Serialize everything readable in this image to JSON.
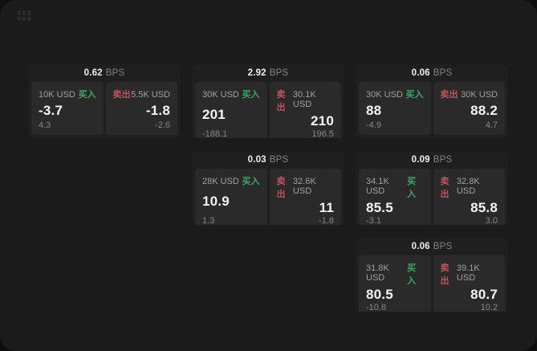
{
  "labels": {
    "bps_unit": "BPS",
    "buy": "买入",
    "sell": "卖出"
  },
  "colors": {
    "backdrop": "#0f0f0f",
    "surface": "#1b1b1b",
    "card": "#1f1f1f",
    "pane": "#2a2a2a",
    "text_primary": "#f5f5f5",
    "text_secondary": "#a2a2a2",
    "text_dim": "#868686",
    "buy_green": "#3ea768",
    "sell_red": "#c05260"
  },
  "icons": {
    "menu": "grid-dots-icon"
  },
  "cards": [
    {
      "bps": "0.62",
      "buy": {
        "amount": "10K USD",
        "value": "-3.7",
        "delta": "4.3"
      },
      "sell": {
        "amount": "5.5K USD",
        "value": "-1.8",
        "delta": "-2.6"
      }
    },
    {
      "bps": "2.92",
      "buy": {
        "amount": "30K USD",
        "value": "201",
        "delta": "-188.1"
      },
      "sell": {
        "amount": "30.1K USD",
        "value": "210",
        "delta": "196.5"
      }
    },
    {
      "bps": "0.06",
      "buy": {
        "amount": "30K USD",
        "value": "88",
        "delta": "-4.9"
      },
      "sell": {
        "amount": "30K USD",
        "value": "88.2",
        "delta": "4.7"
      }
    },
    {
      "bps": "0.03",
      "buy": {
        "amount": "28K USD",
        "value": "10.9",
        "delta": "1.3"
      },
      "sell": {
        "amount": "32.6K USD",
        "value": "11",
        "delta": "-1.8"
      }
    },
    {
      "bps": "0.09",
      "buy": {
        "amount": "34.1K USD",
        "value": "85.5",
        "delta": "-3.1"
      },
      "sell": {
        "amount": "32.8K USD",
        "value": "85.8",
        "delta": "3.0"
      }
    },
    {
      "bps": "0.06",
      "buy": {
        "amount": "31.8K USD",
        "value": "80.5",
        "delta": "-10.8"
      },
      "sell": {
        "amount": "39.1K USD",
        "value": "80.7",
        "delta": "10.2"
      }
    }
  ]
}
